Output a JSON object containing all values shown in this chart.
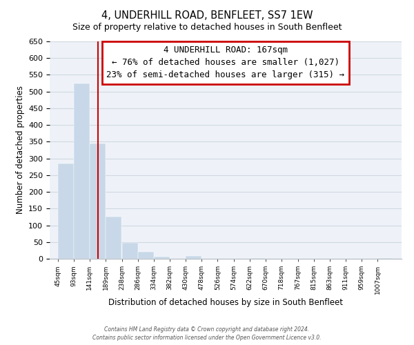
{
  "title": "4, UNDERHILL ROAD, BENFLEET, SS7 1EW",
  "subtitle": "Size of property relative to detached houses in South Benfleet",
  "xlabel": "Distribution of detached houses by size in South Benfleet",
  "ylabel": "Number of detached properties",
  "bar_color": "#c8d8e8",
  "vline_x": 167,
  "vline_color": "#cc0000",
  "annotation_line1": "4 UNDERHILL ROAD: 167sqm",
  "annotation_line2": "← 76% of detached houses are smaller (1,027)",
  "annotation_line3": "23% of semi-detached houses are larger (315) →",
  "annotation_box_edge_color": "#cc0000",
  "categories": [
    "45sqm",
    "93sqm",
    "141sqm",
    "189sqm",
    "238sqm",
    "286sqm",
    "334sqm",
    "382sqm",
    "430sqm",
    "478sqm",
    "526sqm",
    "574sqm",
    "622sqm",
    "670sqm",
    "718sqm",
    "767sqm",
    "815sqm",
    "863sqm",
    "911sqm",
    "959sqm",
    "1007sqm"
  ],
  "bin_edges": [
    45,
    93,
    141,
    189,
    238,
    286,
    334,
    382,
    430,
    478,
    526,
    574,
    622,
    670,
    718,
    767,
    815,
    863,
    911,
    959,
    1007,
    1055
  ],
  "values": [
    285,
    525,
    345,
    125,
    48,
    20,
    7,
    0,
    8,
    0,
    0,
    0,
    3,
    0,
    0,
    0,
    0,
    0,
    0,
    0,
    3
  ],
  "ylim": [
    0,
    650
  ],
  "yticks": [
    0,
    50,
    100,
    150,
    200,
    250,
    300,
    350,
    400,
    450,
    500,
    550,
    600,
    650
  ],
  "footer1": "Contains HM Land Registry data © Crown copyright and database right 2024.",
  "footer2": "Contains public sector information licensed under the Open Government Licence v3.0.",
  "bg_color": "#f0f4f8"
}
